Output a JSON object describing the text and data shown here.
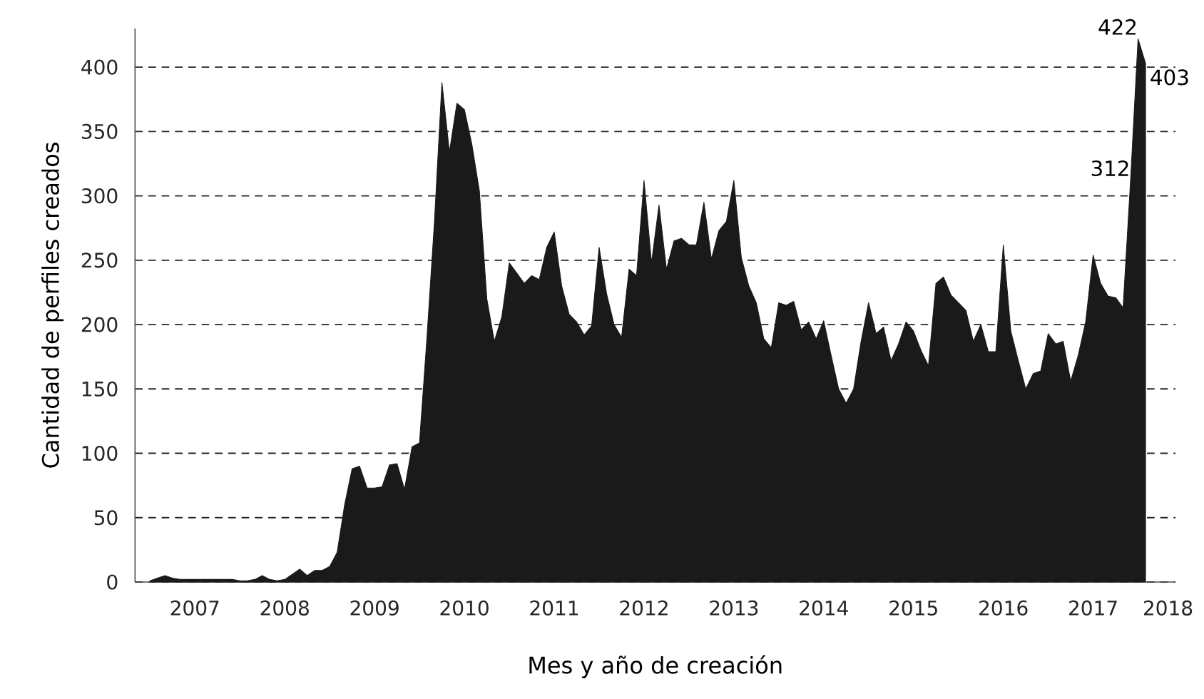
{
  "chart_data": {
    "type": "area",
    "xlabel": "Mes y año de creación",
    "ylabel": "Cantidad de perfiles creados",
    "x": [
      "2007-01",
      "2007-02",
      "2007-03",
      "2007-04",
      "2007-05",
      "2007-06",
      "2007-07",
      "2007-08",
      "2007-09",
      "2007-10",
      "2007-11",
      "2007-12",
      "2008-01",
      "2008-02",
      "2008-03",
      "2008-04",
      "2008-05",
      "2008-06",
      "2008-07",
      "2008-08",
      "2008-09",
      "2008-10",
      "2008-11",
      "2008-12",
      "2009-01",
      "2009-02",
      "2009-03",
      "2009-04",
      "2009-05",
      "2009-06",
      "2009-07",
      "2009-08",
      "2009-09",
      "2009-10",
      "2009-11",
      "2009-12",
      "2010-01",
      "2010-02",
      "2010-03",
      "2010-04",
      "2010-05",
      "2010-06",
      "2010-07",
      "2010-08",
      "2010-09",
      "2010-10",
      "2010-11",
      "2010-12",
      "2011-01",
      "2011-02",
      "2011-03",
      "2011-04",
      "2011-05",
      "2011-06",
      "2011-07",
      "2011-08",
      "2011-09",
      "2011-10",
      "2011-11",
      "2011-12",
      "2012-01",
      "2012-02",
      "2012-03",
      "2012-04",
      "2012-05",
      "2012-06",
      "2012-07",
      "2012-08",
      "2012-09",
      "2012-10",
      "2012-11",
      "2012-12",
      "2013-01",
      "2013-02",
      "2013-03",
      "2013-04",
      "2013-05",
      "2013-06",
      "2013-07",
      "2013-08",
      "2013-09",
      "2013-10",
      "2013-11",
      "2013-12",
      "2014-01",
      "2014-02",
      "2014-03",
      "2014-04",
      "2014-05",
      "2014-06",
      "2014-07",
      "2014-08",
      "2014-09",
      "2014-10",
      "2014-11",
      "2014-12",
      "2015-01",
      "2015-02",
      "2015-03",
      "2015-04",
      "2015-05",
      "2015-06",
      "2015-07",
      "2015-08",
      "2015-09",
      "2015-10",
      "2015-11",
      "2015-12",
      "2016-01",
      "2016-02",
      "2016-03",
      "2016-04",
      "2016-05",
      "2016-06",
      "2016-07",
      "2016-08",
      "2016-09",
      "2016-10",
      "2016-11",
      "2016-12",
      "2017-01",
      "2017-02",
      "2017-03",
      "2017-04",
      "2017-05",
      "2017-06",
      "2017-07",
      "2017-08",
      "2017-09",
      "2017-10",
      "2017-11",
      "2017-12",
      "2018-01",
      "2018-02"
    ],
    "series": [
      {
        "color": "#1a1a1a",
        "values": [
          1,
          3,
          5,
          3,
          2,
          2,
          2,
          2,
          2,
          2,
          2,
          2,
          1,
          1,
          2,
          5,
          2,
          1,
          2,
          6,
          10,
          5,
          9,
          9,
          12,
          23,
          60,
          88,
          90,
          73,
          73,
          74,
          91,
          92,
          72,
          105,
          108,
          190,
          280,
          388,
          334,
          372,
          367,
          340,
          304,
          220,
          187,
          206,
          248,
          240,
          232,
          238,
          235,
          260,
          272,
          230,
          208,
          202,
          192,
          199,
          260,
          224,
          200,
          190,
          243,
          238,
          312,
          248,
          293,
          243,
          265,
          267,
          262,
          262,
          295,
          251,
          273,
          280,
          312,
          252,
          230,
          217,
          189,
          182,
          217,
          215,
          218,
          196,
          202,
          189,
          203,
          176,
          150,
          139,
          150,
          187,
          217,
          193,
          198,
          172,
          185,
          202,
          195,
          180,
          168,
          232,
          237,
          223,
          217,
          211,
          187,
          200,
          179,
          179,
          262,
          195,
          172,
          150,
          162,
          164,
          193,
          185,
          187,
          156,
          176,
          202,
          254,
          232,
          222,
          221,
          213,
          312,
          422,
          403
        ]
      }
    ],
    "xlim": [
      "2006-11",
      "2018-06"
    ],
    "xticks": [
      {
        "value": "2007-07",
        "label": "2007"
      },
      {
        "value": "2008-07",
        "label": "2008"
      },
      {
        "value": "2009-07",
        "label": "2009"
      },
      {
        "value": "2010-07",
        "label": "2010"
      },
      {
        "value": "2011-07",
        "label": "2011"
      },
      {
        "value": "2012-07",
        "label": "2012"
      },
      {
        "value": "2013-07",
        "label": "2013"
      },
      {
        "value": "2014-07",
        "label": "2014"
      },
      {
        "value": "2015-07",
        "label": "2015"
      },
      {
        "value": "2016-07",
        "label": "2016"
      },
      {
        "value": "2017-07",
        "label": "2017"
      },
      {
        "value": "2018-05",
        "label": "2018"
      }
    ],
    "ylim": [
      0,
      430
    ],
    "yticks": [
      0,
      50,
      100,
      150,
      200,
      250,
      300,
      350,
      400
    ],
    "grid": "y",
    "annotations": [
      {
        "text": "312",
        "x": "2017-12",
        "y": 312
      },
      {
        "text": "422",
        "x": "2018-01",
        "y": 422
      },
      {
        "text": "403",
        "x": "2018-02",
        "y": 403
      }
    ]
  }
}
